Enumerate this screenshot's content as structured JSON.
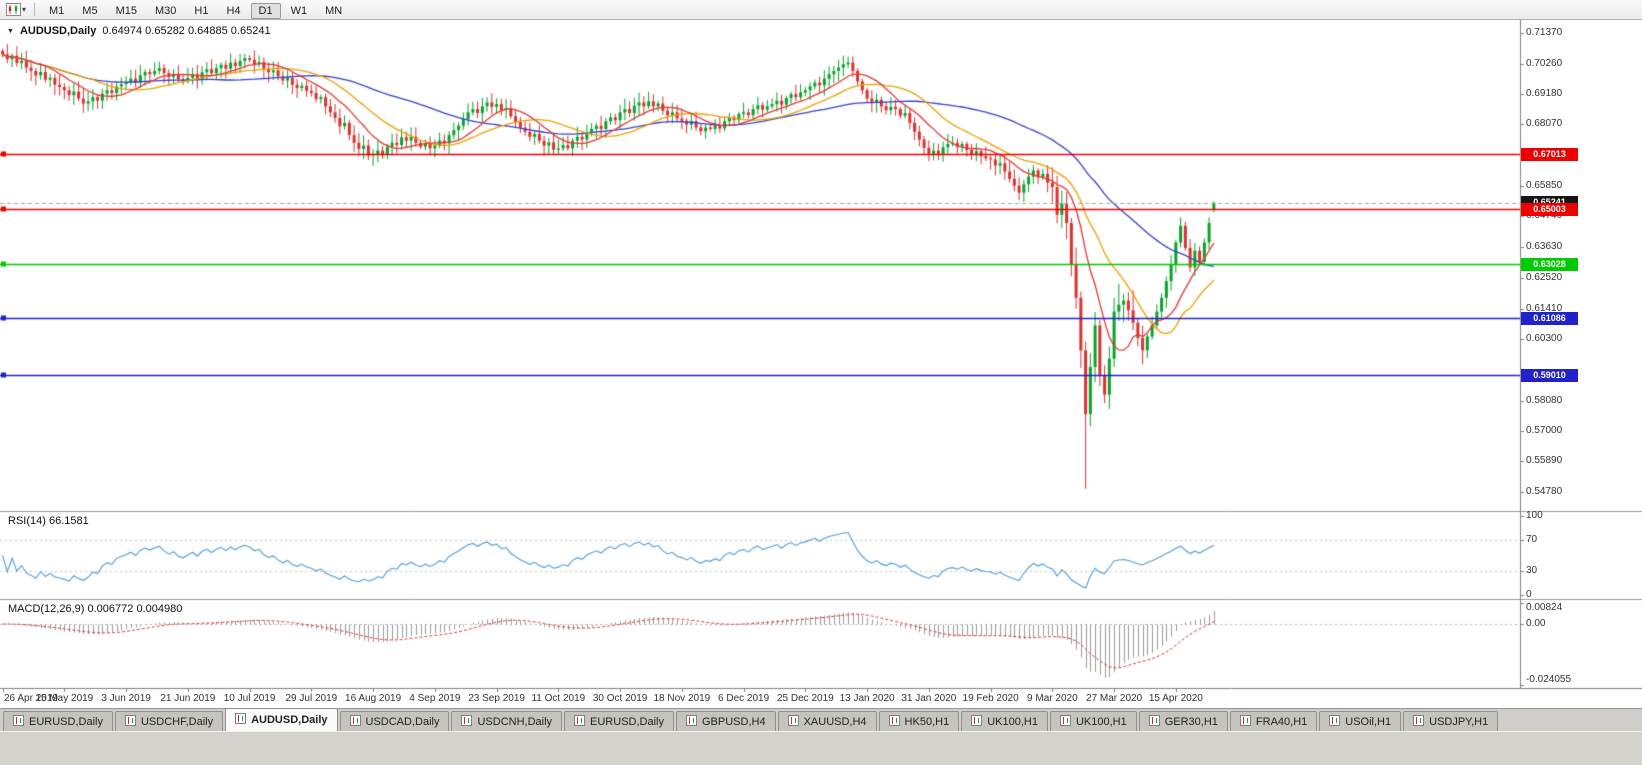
{
  "toolbar": {
    "timeframes": [
      "M1",
      "M5",
      "M15",
      "M30",
      "H1",
      "H4",
      "D1",
      "W1",
      "MN"
    ],
    "active_timeframe": "D1"
  },
  "chart_header": {
    "symbol_label": "AUDUSD,Daily",
    "ohlc_text": "0.64974 0.65282 0.64885 0.65241"
  },
  "candle_colors": {
    "up": "#0aa22c",
    "down": "#dd3030"
  },
  "chart_data": {
    "type": "candlestick",
    "symbol": "AUDUSD",
    "timeframe": "Daily",
    "last_candle": {
      "open": 0.64974,
      "high": 0.65282,
      "low": 0.64885,
      "close": 0.65241
    },
    "crash_bar": {
      "index": 228,
      "low": 0.549
    },
    "closes": [
      0.706,
      0.7042,
      0.7055,
      0.7028,
      0.7036,
      0.7012,
      0.7,
      0.6984,
      0.6996,
      0.6968,
      0.6975,
      0.695,
      0.6942,
      0.693,
      0.6912,
      0.6925,
      0.69,
      0.6882,
      0.689,
      0.6905,
      0.6893,
      0.6918,
      0.693,
      0.692,
      0.6944,
      0.6952,
      0.696,
      0.6972,
      0.6958,
      0.6984,
      0.6996,
      0.6988,
      0.7,
      0.701,
      0.6992,
      0.6978,
      0.699,
      0.697,
      0.6962,
      0.6975,
      0.6988,
      0.697,
      0.6995,
      0.7006,
      0.6992,
      0.701,
      0.7022,
      0.7008,
      0.703,
      0.7018,
      0.7036,
      0.7046,
      0.704,
      0.7024,
      0.7032,
      0.7008,
      0.6995,
      0.7002,
      0.698,
      0.6965,
      0.6975,
      0.695,
      0.6938,
      0.6946,
      0.6928,
      0.692,
      0.6898,
      0.6905,
      0.6872,
      0.685,
      0.683,
      0.68,
      0.6812,
      0.6768,
      0.674,
      0.6718,
      0.673,
      0.6695,
      0.67,
      0.6712,
      0.6698,
      0.6726,
      0.674,
      0.6732,
      0.676,
      0.6748,
      0.6762,
      0.674,
      0.6726,
      0.6738,
      0.672,
      0.673,
      0.6748,
      0.6738,
      0.6768,
      0.6786,
      0.6802,
      0.6826,
      0.685,
      0.6862,
      0.6848,
      0.6872,
      0.6886,
      0.687,
      0.688,
      0.6858,
      0.6866,
      0.6836,
      0.6815,
      0.6795,
      0.678,
      0.6762,
      0.6772,
      0.6748,
      0.673,
      0.6742,
      0.6715,
      0.672,
      0.6732,
      0.672,
      0.6748,
      0.6762,
      0.6752,
      0.6776,
      0.679,
      0.6802,
      0.679,
      0.6818,
      0.6832,
      0.6822,
      0.685,
      0.6862,
      0.6848,
      0.6874,
      0.6886,
      0.6872,
      0.689,
      0.6872,
      0.6882,
      0.6856,
      0.684,
      0.685,
      0.6828,
      0.682,
      0.6806,
      0.6818,
      0.6796,
      0.6782,
      0.6795,
      0.679,
      0.6802,
      0.6792,
      0.6818,
      0.6832,
      0.6822,
      0.6844,
      0.685,
      0.684,
      0.6862,
      0.6876,
      0.686,
      0.6872,
      0.688,
      0.6892,
      0.6878,
      0.6902,
      0.6916,
      0.6905,
      0.6922,
      0.693,
      0.6944,
      0.6958,
      0.6948,
      0.6972,
      0.6988,
      0.7,
      0.7012,
      0.7024,
      0.703,
      0.7,
      0.6962,
      0.693,
      0.69,
      0.6884,
      0.6896,
      0.6872,
      0.6858,
      0.687,
      0.6862,
      0.6838,
      0.6848,
      0.6812,
      0.678,
      0.6752,
      0.6722,
      0.67,
      0.6712,
      0.6698,
      0.6724,
      0.6736,
      0.674,
      0.6726,
      0.6736,
      0.6714,
      0.67,
      0.671,
      0.6692,
      0.6684,
      0.668,
      0.6658,
      0.6666,
      0.6636,
      0.661,
      0.6585,
      0.656,
      0.659,
      0.6618,
      0.664,
      0.6616,
      0.6628,
      0.6596,
      0.658,
      0.648,
      0.652,
      0.645,
      0.63,
      0.618,
      0.599,
      0.576,
      0.593,
      0.608,
      0.59,
      0.583,
      0.596,
      0.613,
      0.6155,
      0.617,
      0.6135,
      0.609,
      0.6035,
      0.599,
      0.604,
      0.608,
      0.613,
      0.618,
      0.624,
      0.63,
      0.638,
      0.644,
      0.636,
      0.629,
      0.635,
      0.631,
      0.638,
      0.645,
      0.65241
    ],
    "bars_per_label": 13,
    "x_labels": [
      "26 Apr 2019",
      "15 May 2019",
      "3 Jun 2019",
      "21 Jun 2019",
      "10 Jul 2019",
      "29 Jul 2019",
      "16 Aug 2019",
      "4 Sep 2019",
      "23 Sep 2019",
      "11 Oct 2019",
      "30 Oct 2019",
      "18 Nov 2019",
      "6 Dec 2019",
      "25 Dec 2019",
      "13 Jan 2020",
      "31 Jan 2020",
      "19 Feb 2020",
      "9 Mar 2020",
      "27 Mar 2020",
      "15 Apr 2020"
    ],
    "price_axis": {
      "top_value": 0.7137,
      "bottom_value": 0.5478,
      "ticks": [
        "0.71370",
        "0.70260",
        "0.69180",
        "0.68070",
        "0.65850",
        "0.64740",
        "0.63630",
        "0.62520",
        "0.61410",
        "0.60300",
        "0.58080",
        "0.57000",
        "0.55890",
        "0.54780"
      ]
    },
    "hlines": [
      {
        "value": 0.67013,
        "label": "0.67013",
        "color": "#ee0000"
      },
      {
        "value": 0.65003,
        "label": "0.65003",
        "color": "#ee0000"
      },
      {
        "value": 0.63028,
        "label": "0.63028",
        "color": "#00cc00"
      },
      {
        "value": 0.61086,
        "label": "0.61086",
        "color": "#2222cc"
      },
      {
        "value": 0.5901,
        "label": "0.59010",
        "color": "#2222cc"
      }
    ],
    "current_price": {
      "value": 0.65241,
      "label": "0.65241",
      "tag_color": "#151515",
      "line_color": "#a8a8a8"
    },
    "moving_averages": [
      {
        "type": "sma",
        "period": 45,
        "color": "#3344cc"
      },
      {
        "type": "sma",
        "period": 20,
        "color": "#f0a000"
      },
      {
        "type": "sma",
        "period": 10,
        "color": "#e53935"
      }
    ],
    "rsi": {
      "label": "RSI(14)",
      "value": "66.1581",
      "period": 14,
      "color": "#4f9ed9",
      "scale_labels": [
        "100",
        "70",
        "30",
        "0"
      ],
      "level_lines": [
        70,
        30
      ]
    },
    "macd": {
      "label": "MACD(12,26,9)",
      "value_main": "0.006772",
      "value_signal": "0.004980",
      "fast": 12,
      "slow": 26,
      "signal": 9,
      "scale_top": "0.00824",
      "scale_zero": "0.00",
      "scale_bottom": "-0.024055",
      "histogram_color": "#9a9a9a",
      "signal_color": "#e53935"
    }
  },
  "tabs": {
    "active_index": 2,
    "items": [
      "EURUSD,Daily",
      "USDCHF,Daily",
      "AUDUSD,Daily",
      "USDCAD,Daily",
      "USDCNH,Daily",
      "EURUSD,Daily",
      "GBPUSD,H4",
      "XAUUSD,H4",
      "HK50,H1",
      "UK100,H1",
      "UK100,H1",
      "GER30,H1",
      "FRA40,H1",
      "USOil,H1",
      "USDJPY,H1"
    ]
  }
}
